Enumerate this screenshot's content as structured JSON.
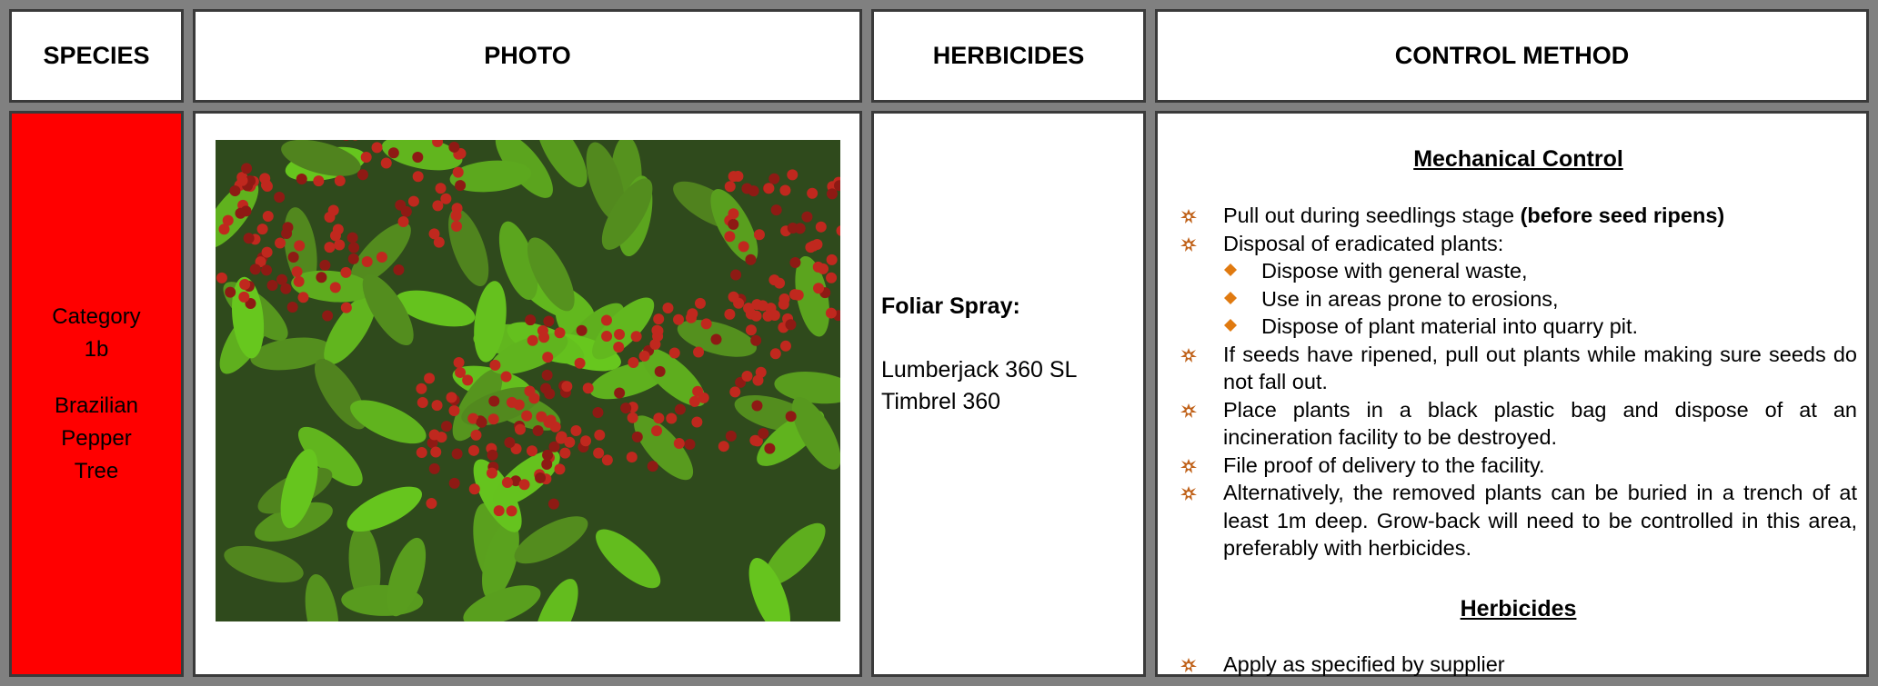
{
  "header": {
    "columns": [
      "SPECIES",
      "PHOTO",
      "HERBICIDES",
      "CONTROL METHOD"
    ]
  },
  "row": {
    "species": {
      "category": "Category 1b",
      "name": "Brazilian Pepper Tree"
    },
    "herbicides": {
      "heading": "Foliar Spray:",
      "products": [
        "Lumberjack 360 SL",
        "Timbrel 360"
      ]
    },
    "control_method": {
      "mechanical": {
        "heading": "Mechanical Control",
        "items": [
          {
            "text": "Pull out during seedlings stage ",
            "bold": "(before seed ripens)"
          },
          {
            "text": "Disposal of eradicated plants:",
            "subitems": [
              "Dispose with general waste,",
              "Use in areas prone to erosions,",
              "Dispose of plant material into quarry pit."
            ]
          },
          {
            "text": "If seeds have ripened, pull out plants while making sure seeds do not fall out."
          },
          {
            "text": "Place plants in a black plastic bag and dispose of at an incineration facility to be destroyed."
          },
          {
            "text": "File proof of delivery to the facility."
          },
          {
            "text": "Alternatively, the removed plants can be buried in a trench of at least 1m deep.  Grow-back will need to be controlled in this area, preferably with herbicides."
          }
        ]
      },
      "herbicides": {
        "heading": "Herbicides",
        "items": [
          {
            "text": "Apply as specified by supplier"
          }
        ]
      }
    }
  }
}
